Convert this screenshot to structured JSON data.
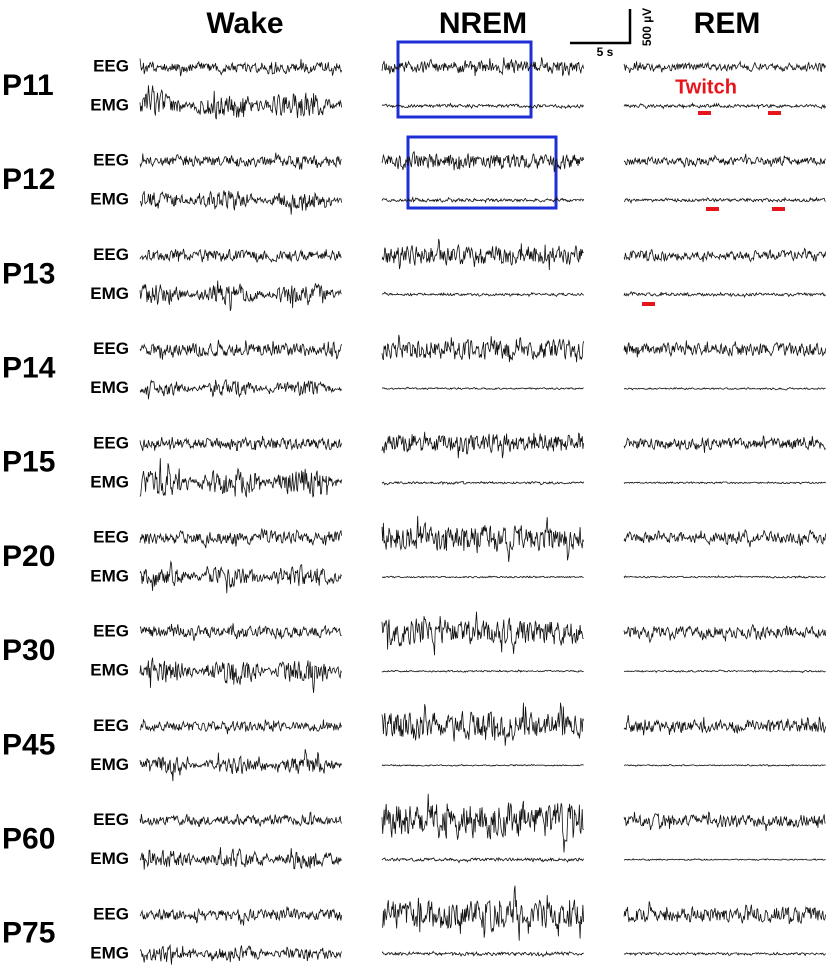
{
  "columns": [
    "Wake",
    "NREM",
    "REM"
  ],
  "scale_bar": {
    "time": "5 s",
    "voltage": "500 µV"
  },
  "annotation": "Twitch",
  "rows": [
    {
      "label": "P11",
      "channels": [
        "EEG",
        "EMG"
      ]
    },
    {
      "label": "P12",
      "channels": [
        "EEG",
        "EMG"
      ]
    },
    {
      "label": "P13",
      "channels": [
        "EEG",
        "EMG"
      ]
    },
    {
      "label": "P14",
      "channels": [
        "EEG",
        "EMG"
      ]
    },
    {
      "label": "P15",
      "channels": [
        "EEG",
        "EMG"
      ]
    },
    {
      "label": "P20",
      "channels": [
        "EEG",
        "EMG"
      ]
    },
    {
      "label": "P30",
      "channels": [
        "EEG",
        "EMG"
      ]
    },
    {
      "label": "P45",
      "channels": [
        "EEG",
        "EMG"
      ]
    },
    {
      "label": "P60",
      "channels": [
        "EEG",
        "EMG"
      ]
    },
    {
      "label": "P75",
      "channels": [
        "EEG",
        "EMG"
      ]
    }
  ]
}
